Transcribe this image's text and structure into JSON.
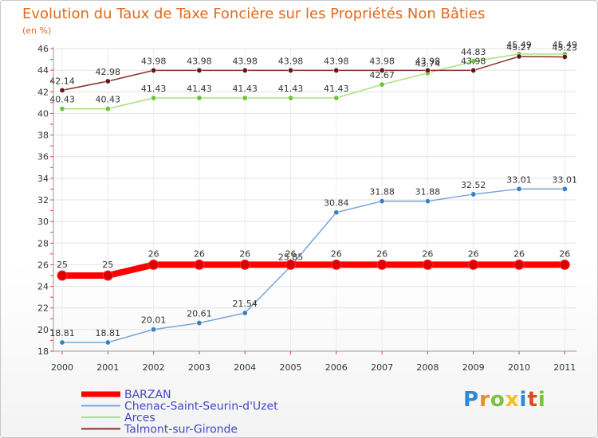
{
  "chart_data": {
    "type": "line",
    "title": "Evolution du Taux de Taxe Foncière sur les Propriétés Non Bâties",
    "ylabel": "(en %)",
    "xlabel": "",
    "ylim": [
      18,
      46
    ],
    "yticks": [
      18,
      20,
      22,
      24,
      26,
      28,
      30,
      32,
      34,
      36,
      38,
      40,
      42,
      44,
      46
    ],
    "categories": [
      "2000",
      "2001",
      "2002",
      "2003",
      "2004",
      "2005",
      "2006",
      "2007",
      "2008",
      "2009",
      "2010",
      "2011"
    ],
    "series": [
      {
        "name": "BARZAN",
        "color": "#ff0000",
        "marker_color": "#dd0000",
        "values": [
          25,
          25,
          26,
          26,
          26,
          26,
          26,
          26,
          26,
          26,
          26,
          26
        ],
        "labels": [
          "25",
          "25",
          "26",
          "26",
          "26",
          "26",
          "26",
          "26",
          "26",
          "26",
          "26",
          "26"
        ]
      },
      {
        "name": "Chenac-Saint-Seurin-d'Uzet",
        "color": "#7aa6d8",
        "marker_color": "#3a7fc4",
        "values": [
          18.81,
          18.81,
          20.01,
          20.61,
          21.54,
          25.85,
          30.84,
          31.88,
          31.88,
          32.52,
          33.01,
          33.01
        ],
        "labels": [
          "18.81",
          "18.81",
          "20.01",
          "20.61",
          "21.54",
          "25.85",
          "30.84",
          "31.88",
          "31.88",
          "32.52",
          "33.01",
          "33.01"
        ]
      },
      {
        "name": "Arces",
        "color": "#a8e07a",
        "marker_color": "#6cc43a",
        "values": [
          40.43,
          40.43,
          41.43,
          41.43,
          41.43,
          41.43,
          41.43,
          42.67,
          43.74,
          44.83,
          45.49,
          45.49
        ],
        "labels": [
          "40.43",
          "40.43",
          "41.43",
          "41.43",
          "41.43",
          "41.43",
          "41.43",
          "42.67",
          "43.74",
          "44.83",
          "45.49",
          "45.49"
        ]
      },
      {
        "name": "Talmont-sur-Gironde",
        "color": "#8a3030",
        "marker_color": "#6a1414",
        "values": [
          42.14,
          42.98,
          43.98,
          43.98,
          43.98,
          43.98,
          43.98,
          43.98,
          43.98,
          43.98,
          45.27,
          45.23
        ],
        "labels": [
          "42.14",
          "42.98",
          "43.98",
          "43.98",
          "43.98",
          "43.98",
          "43.98",
          "43.98",
          "43.98",
          "43.98",
          "45.27",
          "45.23"
        ]
      }
    ]
  },
  "logo": {
    "letters": [
      "P",
      "r",
      "o",
      "x",
      "i",
      "t",
      "i"
    ],
    "colors": [
      "#2a8ad8",
      "#f28a1c",
      "#7ac142",
      "#f2c21c",
      "#2a8ad8",
      "#e04a1c",
      "#7ac142"
    ]
  }
}
